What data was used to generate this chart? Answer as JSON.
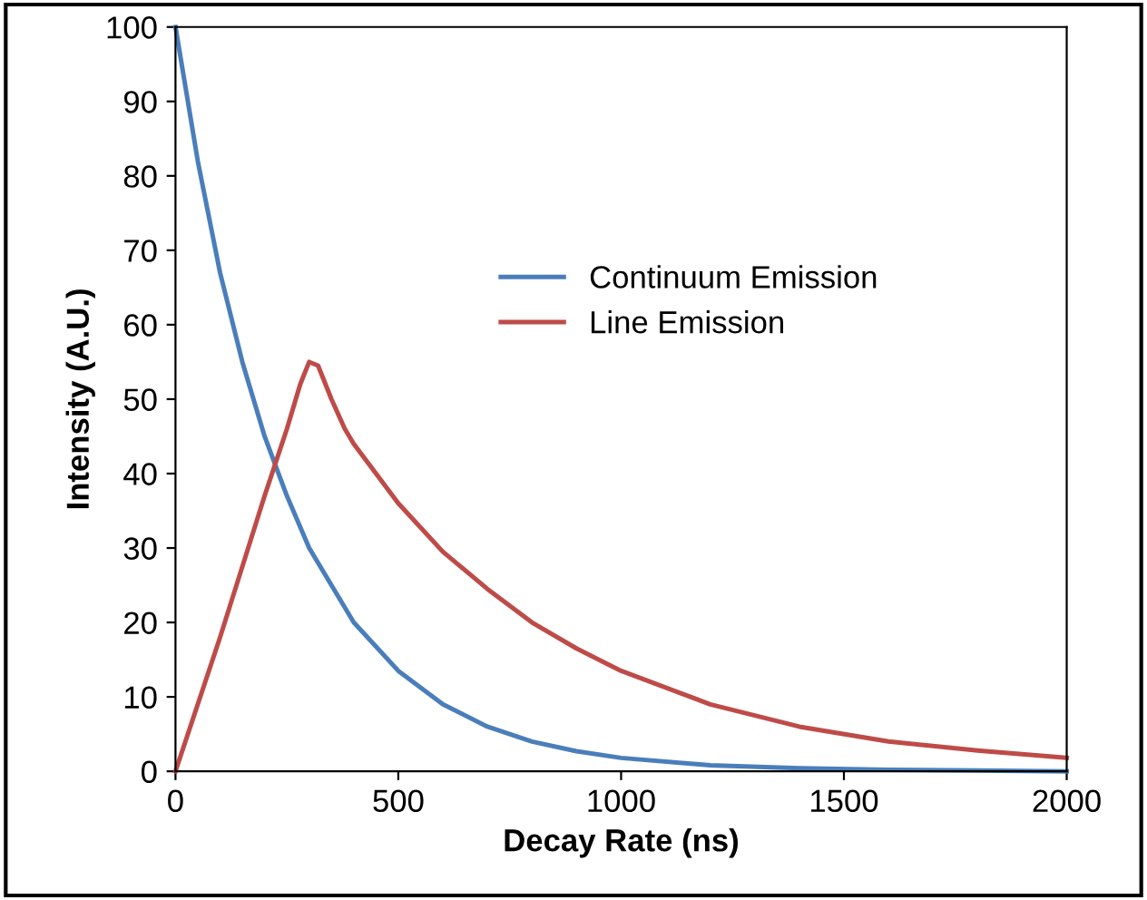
{
  "chart_data": {
    "type": "line",
    "xlabel": "Decay Rate (ns)",
    "ylabel": "Intensity (A.U.)",
    "xlim": [
      0,
      2000
    ],
    "xticks": [
      0,
      500,
      1000,
      1500,
      2000
    ],
    "ylim": [
      0,
      100
    ],
    "yticks": [
      0,
      10,
      20,
      30,
      40,
      50,
      60,
      70,
      80,
      90,
      100
    ],
    "grid": false,
    "legend": "right",
    "marker": "none",
    "line_style": "solid",
    "series": [
      {
        "name": "Continuum Emission",
        "color": "#4a7ebb",
        "x": [
          0,
          50,
          100,
          150,
          200,
          250,
          300,
          400,
          500,
          600,
          700,
          800,
          900,
          1000,
          1200,
          1400,
          1600,
          1800,
          2000
        ],
        "values": [
          100,
          82,
          67,
          55,
          45,
          37,
          30,
          20,
          13.5,
          9,
          6,
          4,
          2.7,
          1.8,
          0.8,
          0.4,
          0.2,
          0.1,
          0
        ]
      },
      {
        "name": "Line Emission",
        "color": "#be4b48",
        "x": [
          0,
          100,
          200,
          250,
          280,
          300,
          320,
          350,
          380,
          400,
          500,
          600,
          700,
          800,
          900,
          1000,
          1200,
          1400,
          1600,
          1800,
          2000
        ],
        "values": [
          0,
          18,
          37,
          46,
          52,
          55,
          54.5,
          50,
          46,
          44,
          36,
          29.5,
          24.5,
          20,
          16.5,
          13.5,
          9,
          6,
          4,
          2.8,
          1.8
        ]
      }
    ]
  }
}
